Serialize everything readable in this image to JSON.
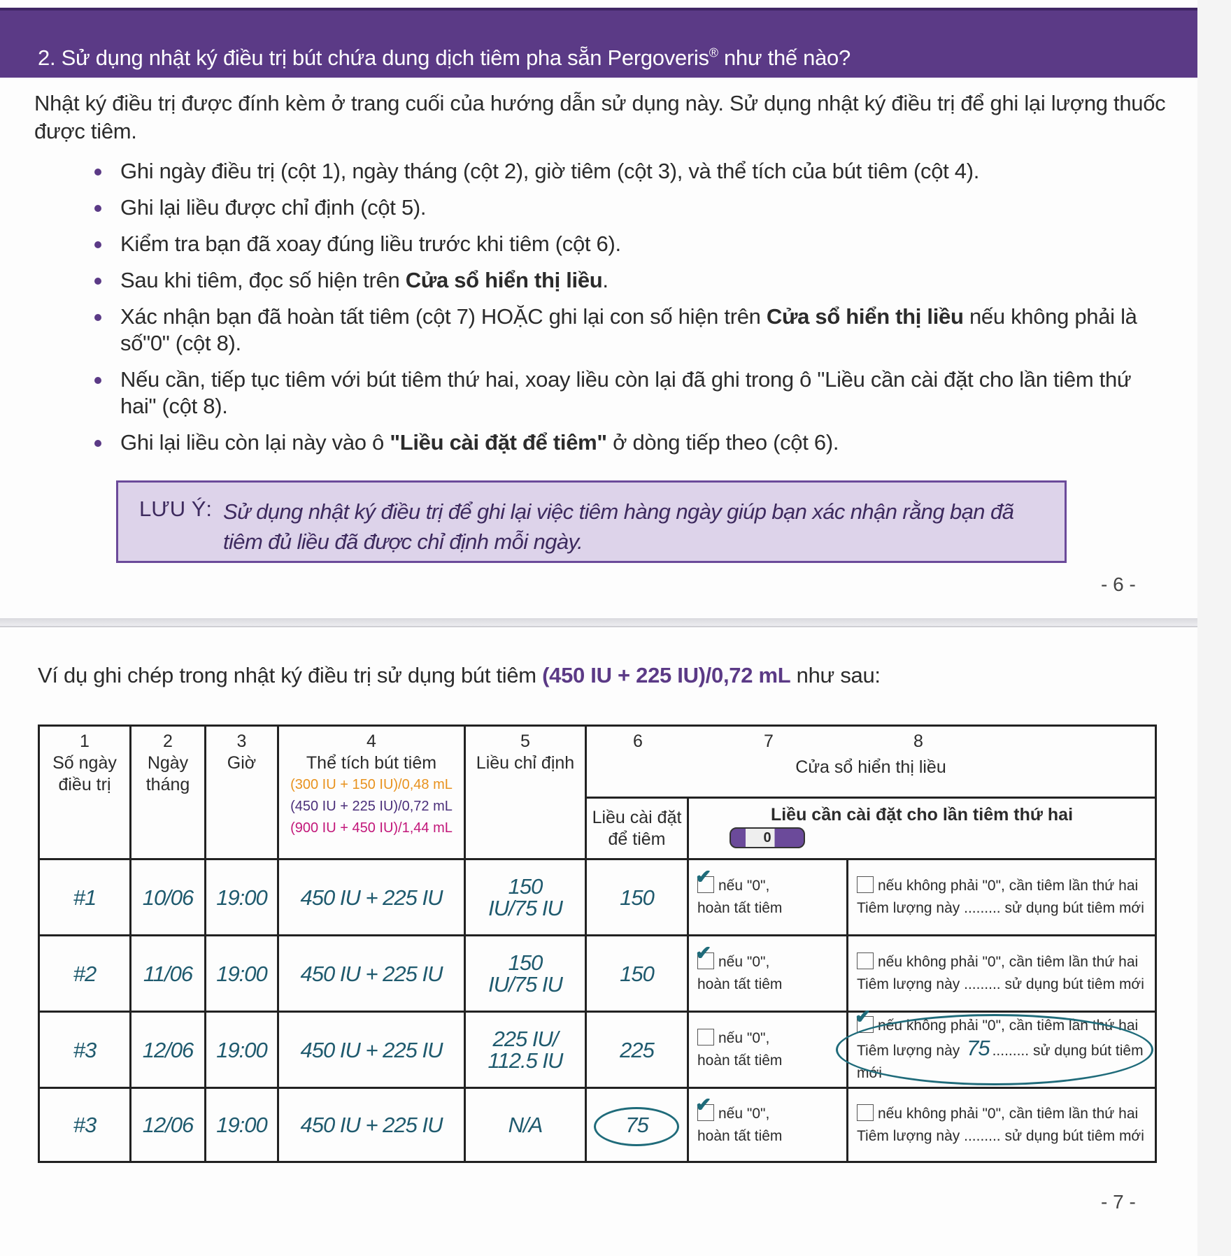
{
  "page6": {
    "title": "2. Sử dụng nhật ký điều trị bút chứa dung dịch tiêm pha sẵn Pergoveris",
    "title_mark": "®",
    "title_end": " như thế nào?",
    "intro": "Nhật ký điều trị được đính kèm ở trang cuối của hướng dẫn sử dụng này. Sử dụng nhật ký điều trị để ghi lại lượng thuốc được tiêm.",
    "bullets": [
      {
        "pre": "Ghi ngày điều trị (cột 1), ngày tháng (cột 2), giờ tiêm (cột 3), và thể tích của bút tiêm (cột 4).",
        "bold": "",
        "post": ""
      },
      {
        "pre": "Ghi lại liều được chỉ định (cột 5).",
        "bold": "",
        "post": ""
      },
      {
        "pre": "Kiểm tra bạn đã xoay đúng liều trước khi tiêm (cột 6).",
        "bold": "",
        "post": ""
      },
      {
        "pre": "Sau khi tiêm, đọc số hiện trên ",
        "bold": "Cửa sổ hiển thị liều",
        "post": "."
      },
      {
        "pre": "Xác nhận bạn đã hoàn tất tiêm (cột 7) HOẶC ghi lại con số hiện trên ",
        "bold": "Cửa sổ hiển thị liều",
        "post": " nếu không phải là số\"0\" (cột 8)."
      },
      {
        "pre": "Nếu cần, tiếp tục tiêm với bút tiêm thứ hai, xoay liều còn lại đã ghi trong ô \"Liều cần cài đặt cho lần tiêm thứ hai\" (cột 8).",
        "bold": "",
        "post": ""
      },
      {
        "pre": "Ghi lại liều còn lại này vào ô ",
        "bold": "\"Liều cài đặt để tiêm\"",
        "post": " ở dòng tiếp theo (cột 6)."
      }
    ],
    "note_label": "LƯU Ý:",
    "note_text": "Sử dụng nhật ký điều trị để ghi lại việc tiêm hàng ngày giúp bạn xác nhận rằng bạn đã tiêm đủ liều đã được chỉ định mỗi ngày.",
    "page_number": "- 6 -"
  },
  "page7": {
    "intro_pre": "Ví dụ ghi chép trong nhật ký điều trị sử dụng bút tiêm ",
    "intro_bold": "(450 IU + 225 IU)/0,72 mL",
    "intro_post": " như sau:",
    "header": {
      "c1_num": "1",
      "c1": "Số ngày điều trị",
      "c2_num": "2",
      "c2": "Ngày tháng",
      "c3_num": "3",
      "c3": "Giờ",
      "c4_num": "4",
      "c4": "Thể tích bút tiêm",
      "c4_opt1": "(300 IU + 150 IU)/0,48 mL",
      "c4_opt2": "(450 IU + 225 IU)/0,72 mL",
      "c4_opt3": "(900 IU + 450 IU)/1,44 mL",
      "c5_num": "5",
      "c5": "Liều chỉ định",
      "c6_num": "6",
      "c7_num": "7",
      "c8_num": "8",
      "group": "Cửa sổ hiển thị liều",
      "c6": "Liều cài đặt để tiêm",
      "c78": "Liều cần cài đặt cho lần tiêm thứ hai",
      "dose_window": "0"
    },
    "c7_line1": "nếu \"0\",",
    "c7_line2": "hoàn tất tiêm",
    "c8_line1": "nếu không phải \"0\", cần tiêm lần thứ hai",
    "c8_pre": "Tiêm lượng này ",
    "c8_dots": ".........",
    "c8_post": " sử dụng bút tiêm mới",
    "rows": [
      {
        "day": "#1",
        "date": "10/06",
        "time": "19:00",
        "volume": "450 IU + 225 IU",
        "dose": "150 IU/75 IU",
        "set": "150",
        "c7_checked": true,
        "c8_checked": false,
        "c8_value": ""
      },
      {
        "day": "#2",
        "date": "11/06",
        "time": "19:00",
        "volume": "450 IU + 225 IU",
        "dose": "150 IU/75 IU",
        "set": "150",
        "c7_checked": true,
        "c8_checked": false,
        "c8_value": ""
      },
      {
        "day": "#3",
        "date": "12/06",
        "time": "19:00",
        "volume": "450 IU + 225 IU",
        "dose": "225 IU/ 112.5 IU",
        "set": "225",
        "c7_checked": false,
        "c8_checked": true,
        "c8_value": "75"
      },
      {
        "day": "#3",
        "date": "12/06",
        "time": "19:00",
        "volume": "450 IU + 225 IU",
        "dose": "N/A",
        "set": "75",
        "c7_checked": true,
        "c8_checked": false,
        "c8_value": ""
      }
    ],
    "colors": {
      "purple": "#5b3a86",
      "orange": "#e8921e",
      "violet": "#4b2f7a",
      "magenta": "#c2187a",
      "handwriting": "#1f6b7a"
    },
    "page_number": "- 7 -"
  }
}
